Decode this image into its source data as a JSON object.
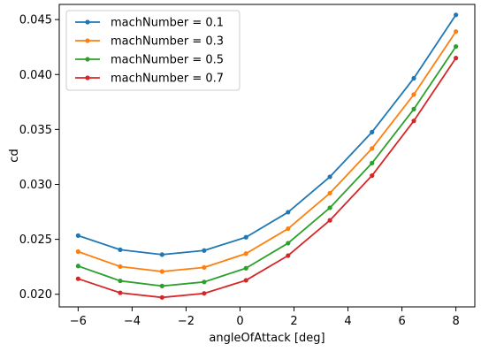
{
  "chart_data": {
    "type": "line",
    "title": "",
    "xlabel": "angleOfAttack [deg]",
    "ylabel": "cd",
    "xlim": [
      -6.7,
      8.7
    ],
    "ylim": [
      0.01885,
      0.04638
    ],
    "xticks": [
      -6,
      -4,
      -2,
      0,
      2,
      4,
      6,
      8
    ],
    "xtick_labels": [
      "−6",
      "−4",
      "−2",
      "0",
      "2",
      "4",
      "6",
      "8"
    ],
    "yticks": [
      0.02,
      0.025,
      0.03,
      0.035,
      0.04,
      0.045
    ],
    "ytick_labels": [
      "0.020",
      "0.025",
      "0.030",
      "0.035",
      "0.040",
      "0.045"
    ],
    "grid": false,
    "legend_position": "top-left",
    "x": [
      -6.0,
      -4.44,
      -2.89,
      -1.33,
      0.22,
      1.78,
      3.33,
      4.89,
      6.44,
      8.0
    ],
    "series": [
      {
        "name": "machNumber = 0.1",
        "color": "#1f77b4",
        "values": [
          0.02534,
          0.02405,
          0.02361,
          0.02398,
          0.02519,
          0.02747,
          0.03069,
          0.03476,
          0.03966,
          0.04543
        ]
      },
      {
        "name": "machNumber = 0.3",
        "color": "#ff7f0e",
        "values": [
          0.02388,
          0.02252,
          0.02207,
          0.02244,
          0.0237,
          0.02597,
          0.0292,
          0.03327,
          0.03818,
          0.04391
        ]
      },
      {
        "name": "machNumber = 0.5",
        "color": "#2ca02c",
        "values": [
          0.02257,
          0.02122,
          0.02075,
          0.02112,
          0.02237,
          0.02465,
          0.02787,
          0.03194,
          0.03685,
          0.04255
        ]
      },
      {
        "name": "machNumber = 0.7",
        "color": "#d62728",
        "values": [
          0.02141,
          0.02013,
          0.01971,
          0.02008,
          0.02127,
          0.02352,
          0.02673,
          0.0308,
          0.03578,
          0.0415
        ]
      }
    ]
  }
}
